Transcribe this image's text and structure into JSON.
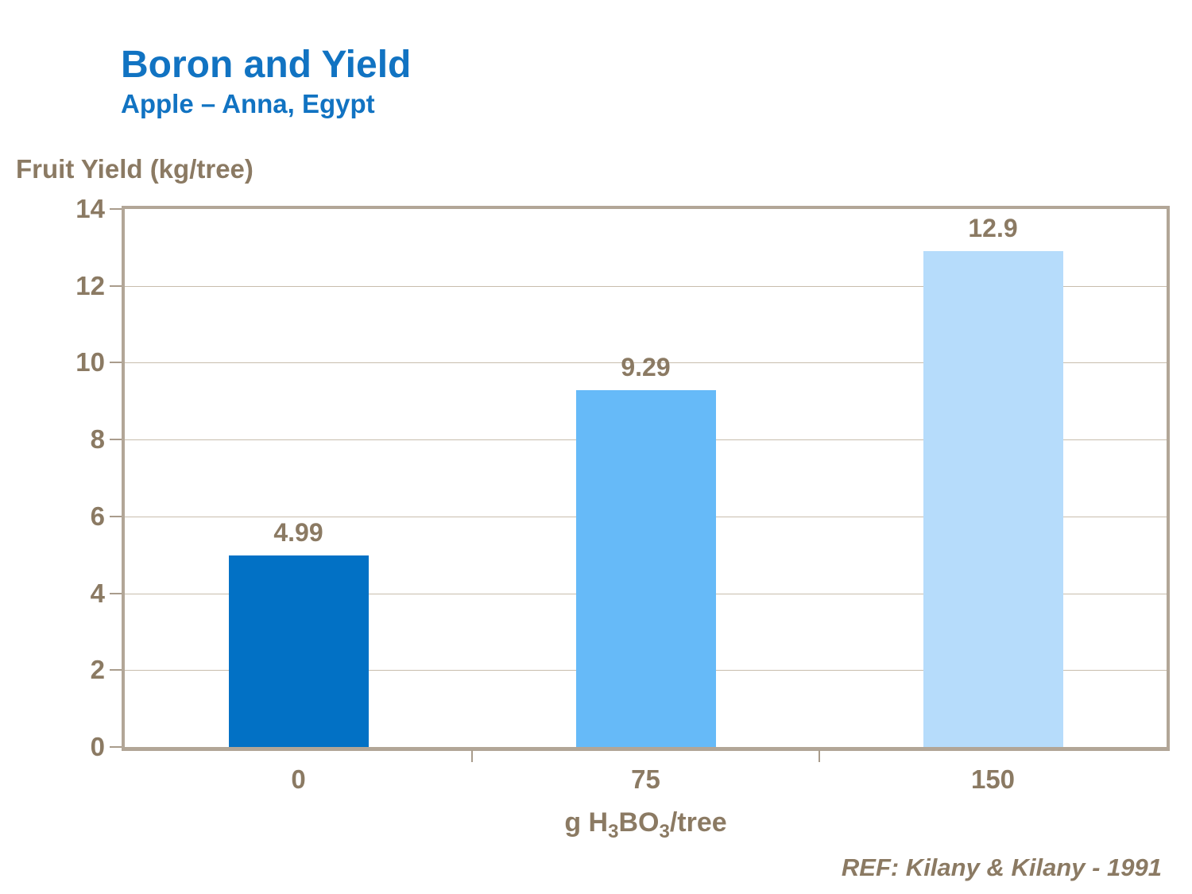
{
  "header": {
    "title": "Boron and Yield",
    "subtitle": "Apple – Anna, Egypt"
  },
  "colors": {
    "title_blue": "#1173C2",
    "text_brown": "#8B7A63",
    "frame_tan": "#B2A697",
    "gridline_tan": "#C8BDAD",
    "tick_tan": "#A99C8C",
    "bar_colors": [
      "#0271C5",
      "#66BAF8",
      "#B6DCFB"
    ]
  },
  "chart_data": {
    "type": "bar",
    "title": "Boron and Yield — Apple – Anna, Egypt",
    "ylabel": "Fruit Yield (kg/tree)",
    "xlabel": "g H3BO3/tree",
    "xlabel_parts": [
      {
        "text": "g H"
      },
      {
        "sub": "3"
      },
      {
        "text": "BO"
      },
      {
        "sub": "3"
      },
      {
        "text": "/tree"
      }
    ],
    "categories": [
      "0",
      "75",
      "150"
    ],
    "values": [
      4.99,
      9.29,
      12.9
    ],
    "value_labels": [
      "4.99",
      "9.29",
      "12.9"
    ],
    "ylim": [
      0,
      14
    ],
    "yticks": [
      0,
      2,
      4,
      6,
      8,
      10,
      12,
      14
    ],
    "grid": true,
    "legend": false
  },
  "footer": {
    "reference": "REF: Kilany & Kilany - 1991"
  }
}
